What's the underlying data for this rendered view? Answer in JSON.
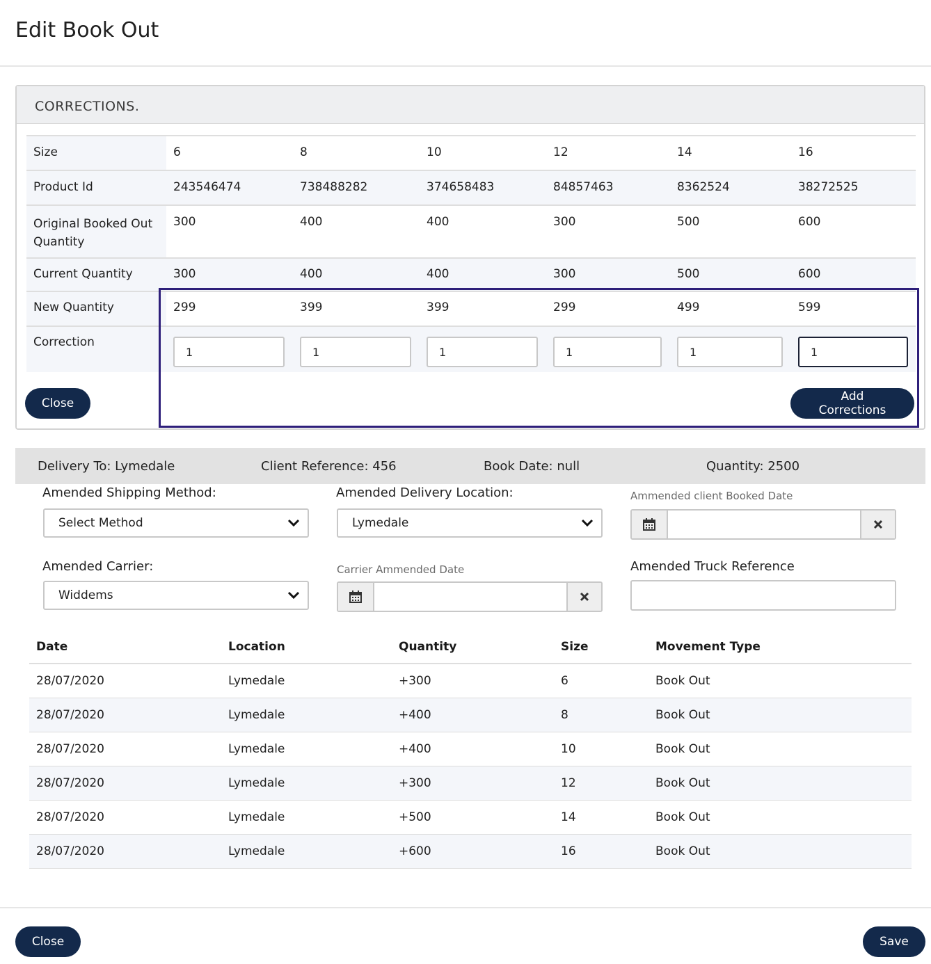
{
  "modal": {
    "title": "Edit Book Out"
  },
  "corrections": {
    "heading": "CORRECTIONS.",
    "rows": {
      "size": {
        "label": "Size",
        "values": [
          "6",
          "8",
          "10",
          "12",
          "14",
          "16"
        ]
      },
      "product_id": {
        "label": "Product Id",
        "values": [
          "243546474",
          "738488282",
          "374658483",
          "84857463",
          "8362524",
          "38272525"
        ]
      },
      "original": {
        "label": "Original Booked Out Quantity",
        "values": [
          "300",
          "400",
          "400",
          "300",
          "500",
          "600"
        ]
      },
      "current": {
        "label": "Current Quantity",
        "values": [
          "300",
          "400",
          "400",
          "300",
          "500",
          "600"
        ]
      },
      "new_qty": {
        "label": "New Quantity",
        "values": [
          "299",
          "399",
          "399",
          "299",
          "499",
          "599"
        ]
      },
      "correction": {
        "label": "Correction",
        "values": [
          "1",
          "1",
          "1",
          "1",
          "1",
          "1"
        ]
      }
    },
    "close_label": "Close",
    "add_label": "Add Corrections"
  },
  "summary": {
    "delivery": "Delivery To: Lymedale",
    "client_ref": "Client Reference: 456",
    "book_date": "Book Date: null",
    "quantity": "Quantity: 2500"
  },
  "form": {
    "shipping_method": {
      "label": "Amended Shipping Method:",
      "value": "Select Method"
    },
    "delivery_location": {
      "label": "Amended Delivery Location:",
      "value": "Lymedale"
    },
    "client_booked_date": {
      "label": "Ammended client Booked Date",
      "value": ""
    },
    "carrier": {
      "label": "Amended Carrier:",
      "value": "Widdems"
    },
    "carrier_date": {
      "label": "Carrier Ammended Date",
      "value": ""
    },
    "truck_ref": {
      "label": "Amended Truck Reference",
      "value": ""
    }
  },
  "movements": {
    "headers": [
      "Date",
      "Location",
      "Quantity",
      "Size",
      "Movement Type"
    ],
    "rows": [
      [
        "28/07/2020",
        "Lymedale",
        "+300",
        "6",
        "Book Out"
      ],
      [
        "28/07/2020",
        "Lymedale",
        "+400",
        "8",
        "Book Out"
      ],
      [
        "28/07/2020",
        "Lymedale",
        "+400",
        "10",
        "Book Out"
      ],
      [
        "28/07/2020",
        "Lymedale",
        "+300",
        "12",
        "Book Out"
      ],
      [
        "28/07/2020",
        "Lymedale",
        "+500",
        "14",
        "Book Out"
      ],
      [
        "28/07/2020",
        "Lymedale",
        "+600",
        "16",
        "Book Out"
      ]
    ]
  },
  "footer": {
    "close_label": "Close",
    "save_label": "Save"
  },
  "icons": {
    "chevron": "chevron-down-icon",
    "calendar": "calendar-icon",
    "clear": "close-icon"
  },
  "colors": {
    "primary_button": "#13294b",
    "highlight_border": "#2e1f7a",
    "stripe": "#f4f6fa"
  }
}
